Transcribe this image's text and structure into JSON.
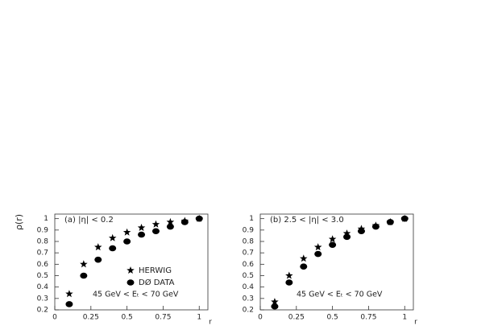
{
  "chart_data": [
    {
      "type": "scatter",
      "title": "(a) |η| < 0.2",
      "annotation": "45 GeV < Eₜ < 70 GeV",
      "xlabel": "r",
      "ylabel": "ρ(r)",
      "x": [
        0.1,
        0.2,
        0.3,
        0.4,
        0.5,
        0.6,
        0.7,
        0.8,
        0.9,
        1.0
      ],
      "series": [
        {
          "name": "HERWIG",
          "color": "#000000",
          "marker": "star",
          "values": [
            0.34,
            0.6,
            0.75,
            0.83,
            0.88,
            0.92,
            0.95,
            0.97,
            0.98,
            1.0
          ]
        },
        {
          "name": "DØ DATA",
          "color": "#000000",
          "marker": "circle",
          "values": [
            0.25,
            0.5,
            0.64,
            0.74,
            0.8,
            0.86,
            0.89,
            0.93,
            0.97,
            1.0
          ]
        }
      ],
      "xlim": [
        0,
        1.06
      ],
      "ylim": [
        0.2,
        1.04
      ],
      "xticks": [
        0,
        0.25,
        0.5,
        0.75,
        1
      ],
      "yticks": [
        0.2,
        0.3,
        0.4,
        0.5,
        0.6,
        0.7,
        0.8,
        0.9,
        1
      ],
      "legend": "lower-right"
    },
    {
      "type": "scatter",
      "title": "(b) 2.5 < |η| < 3.0",
      "annotation": "45 GeV < Eₜ < 70 GeV",
      "xlabel": "r",
      "x": [
        0.1,
        0.2,
        0.3,
        0.4,
        0.5,
        0.6,
        0.7,
        0.8,
        0.9,
        1.0
      ],
      "series": [
        {
          "color": "#000000",
          "marker": "star",
          "values": [
            0.27,
            0.5,
            0.65,
            0.75,
            0.82,
            0.87,
            0.91,
            0.94,
            0.97,
            1.0
          ]
        },
        {
          "color": "#000000",
          "marker": "circle",
          "values": [
            0.23,
            0.44,
            0.58,
            0.69,
            0.77,
            0.84,
            0.89,
            0.93,
            0.97,
            1.0
          ]
        }
      ],
      "xlim": [
        0,
        1.06
      ],
      "ylim": [
        0.2,
        1.04
      ],
      "xticks": [
        0,
        0.25,
        0.5,
        0.75,
        1
      ],
      "yticks": [
        0.2,
        0.3,
        0.4,
        0.5,
        0.6,
        0.7,
        0.8,
        0.9,
        1
      ]
    }
  ]
}
